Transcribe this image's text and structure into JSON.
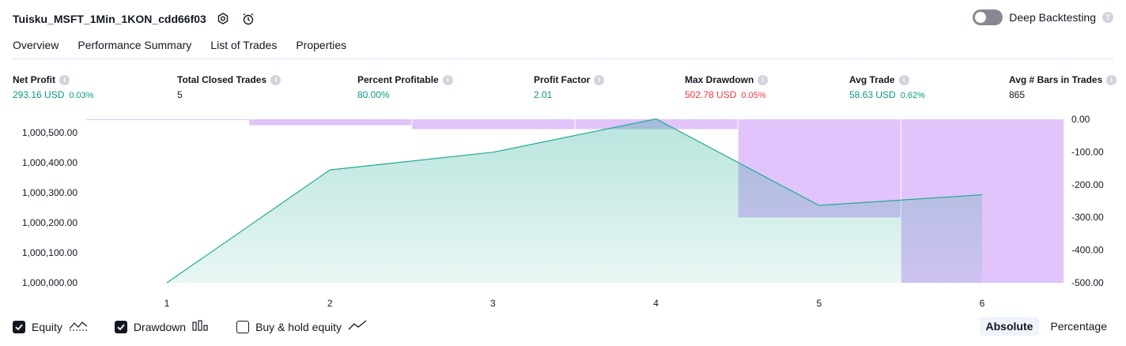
{
  "header": {
    "strategy_name": "Tuisku_MSFT_1Min_1KON_cdd66f03",
    "deep_backtesting_label": "Deep Backtesting",
    "deep_backtesting_enabled": false
  },
  "tabs": [
    {
      "label": "Overview",
      "active": true
    },
    {
      "label": "Performance Summary",
      "active": false
    },
    {
      "label": "List of Trades",
      "active": false
    },
    {
      "label": "Properties",
      "active": false
    }
  ],
  "metrics": {
    "net_profit": {
      "label": "Net Profit",
      "value": "293.16 USD",
      "pct": "0.03%"
    },
    "total_closed_trades": {
      "label": "Total Closed Trades",
      "value": "5"
    },
    "percent_profitable": {
      "label": "Percent Profitable",
      "value": "80.00%"
    },
    "profit_factor": {
      "label": "Profit Factor",
      "value": "2.01"
    },
    "max_drawdown": {
      "label": "Max Drawdown",
      "value": "502.78 USD",
      "pct": "0.05%"
    },
    "avg_trade": {
      "label": "Avg Trade",
      "value": "58.63 USD",
      "pct": "0.62%"
    },
    "avg_bars": {
      "label": "Avg # Bars in Trades",
      "value": "865"
    }
  },
  "colors": {
    "positive": "#089981",
    "negative": "#f23645",
    "equity_line": "#22ab94",
    "drawdown_fill": "#e1c4fb",
    "overlap_fill": "#b9b3ec"
  },
  "chart_data": {
    "type": "area",
    "x": [
      1,
      2,
      3,
      4,
      5,
      6
    ],
    "x_tick_labels": [
      "1",
      "2",
      "3",
      "4",
      "5",
      "6"
    ],
    "series": [
      {
        "key": "equity",
        "type": "area",
        "axis": "left",
        "values": [
          1000000.0,
          1000376.0,
          1000435.0,
          1000546.0,
          1000258.0,
          1000293.16
        ]
      },
      {
        "key": "drawdown",
        "type": "bar",
        "axis": "right",
        "values": [
          -2,
          -18,
          -30,
          -30,
          -300,
          -500
        ]
      }
    ],
    "left_axis": {
      "ticks": [
        "1,000,000.00",
        "1,000,100.00",
        "1,000,200.00",
        "1,000,300.00",
        "1,000,400.00",
        "1,000,500.00"
      ],
      "tick_values": [
        1000000,
        1000100,
        1000200,
        1000300,
        1000400,
        1000500
      ]
    },
    "right_axis": {
      "ticks": [
        "0.00",
        "-100.00",
        "-200.00",
        "-300.00",
        "-400.00",
        "-500.00"
      ],
      "tick_values": [
        0,
        -100,
        -200,
        -300,
        -400,
        -500
      ]
    },
    "grid": false,
    "legend": "bottom-left"
  },
  "legend_controls": {
    "equity": {
      "label": "Equity",
      "checked": true,
      "icon": "equity-icon"
    },
    "drawdown": {
      "label": "Drawdown",
      "checked": true,
      "icon": "drawdown-icon"
    },
    "buy_hold": {
      "label": "Buy & hold equity",
      "checked": false,
      "icon": "buy-hold-icon"
    }
  },
  "mode_toggle": {
    "absolute": "Absolute",
    "percentage": "Percentage",
    "active": "absolute"
  }
}
